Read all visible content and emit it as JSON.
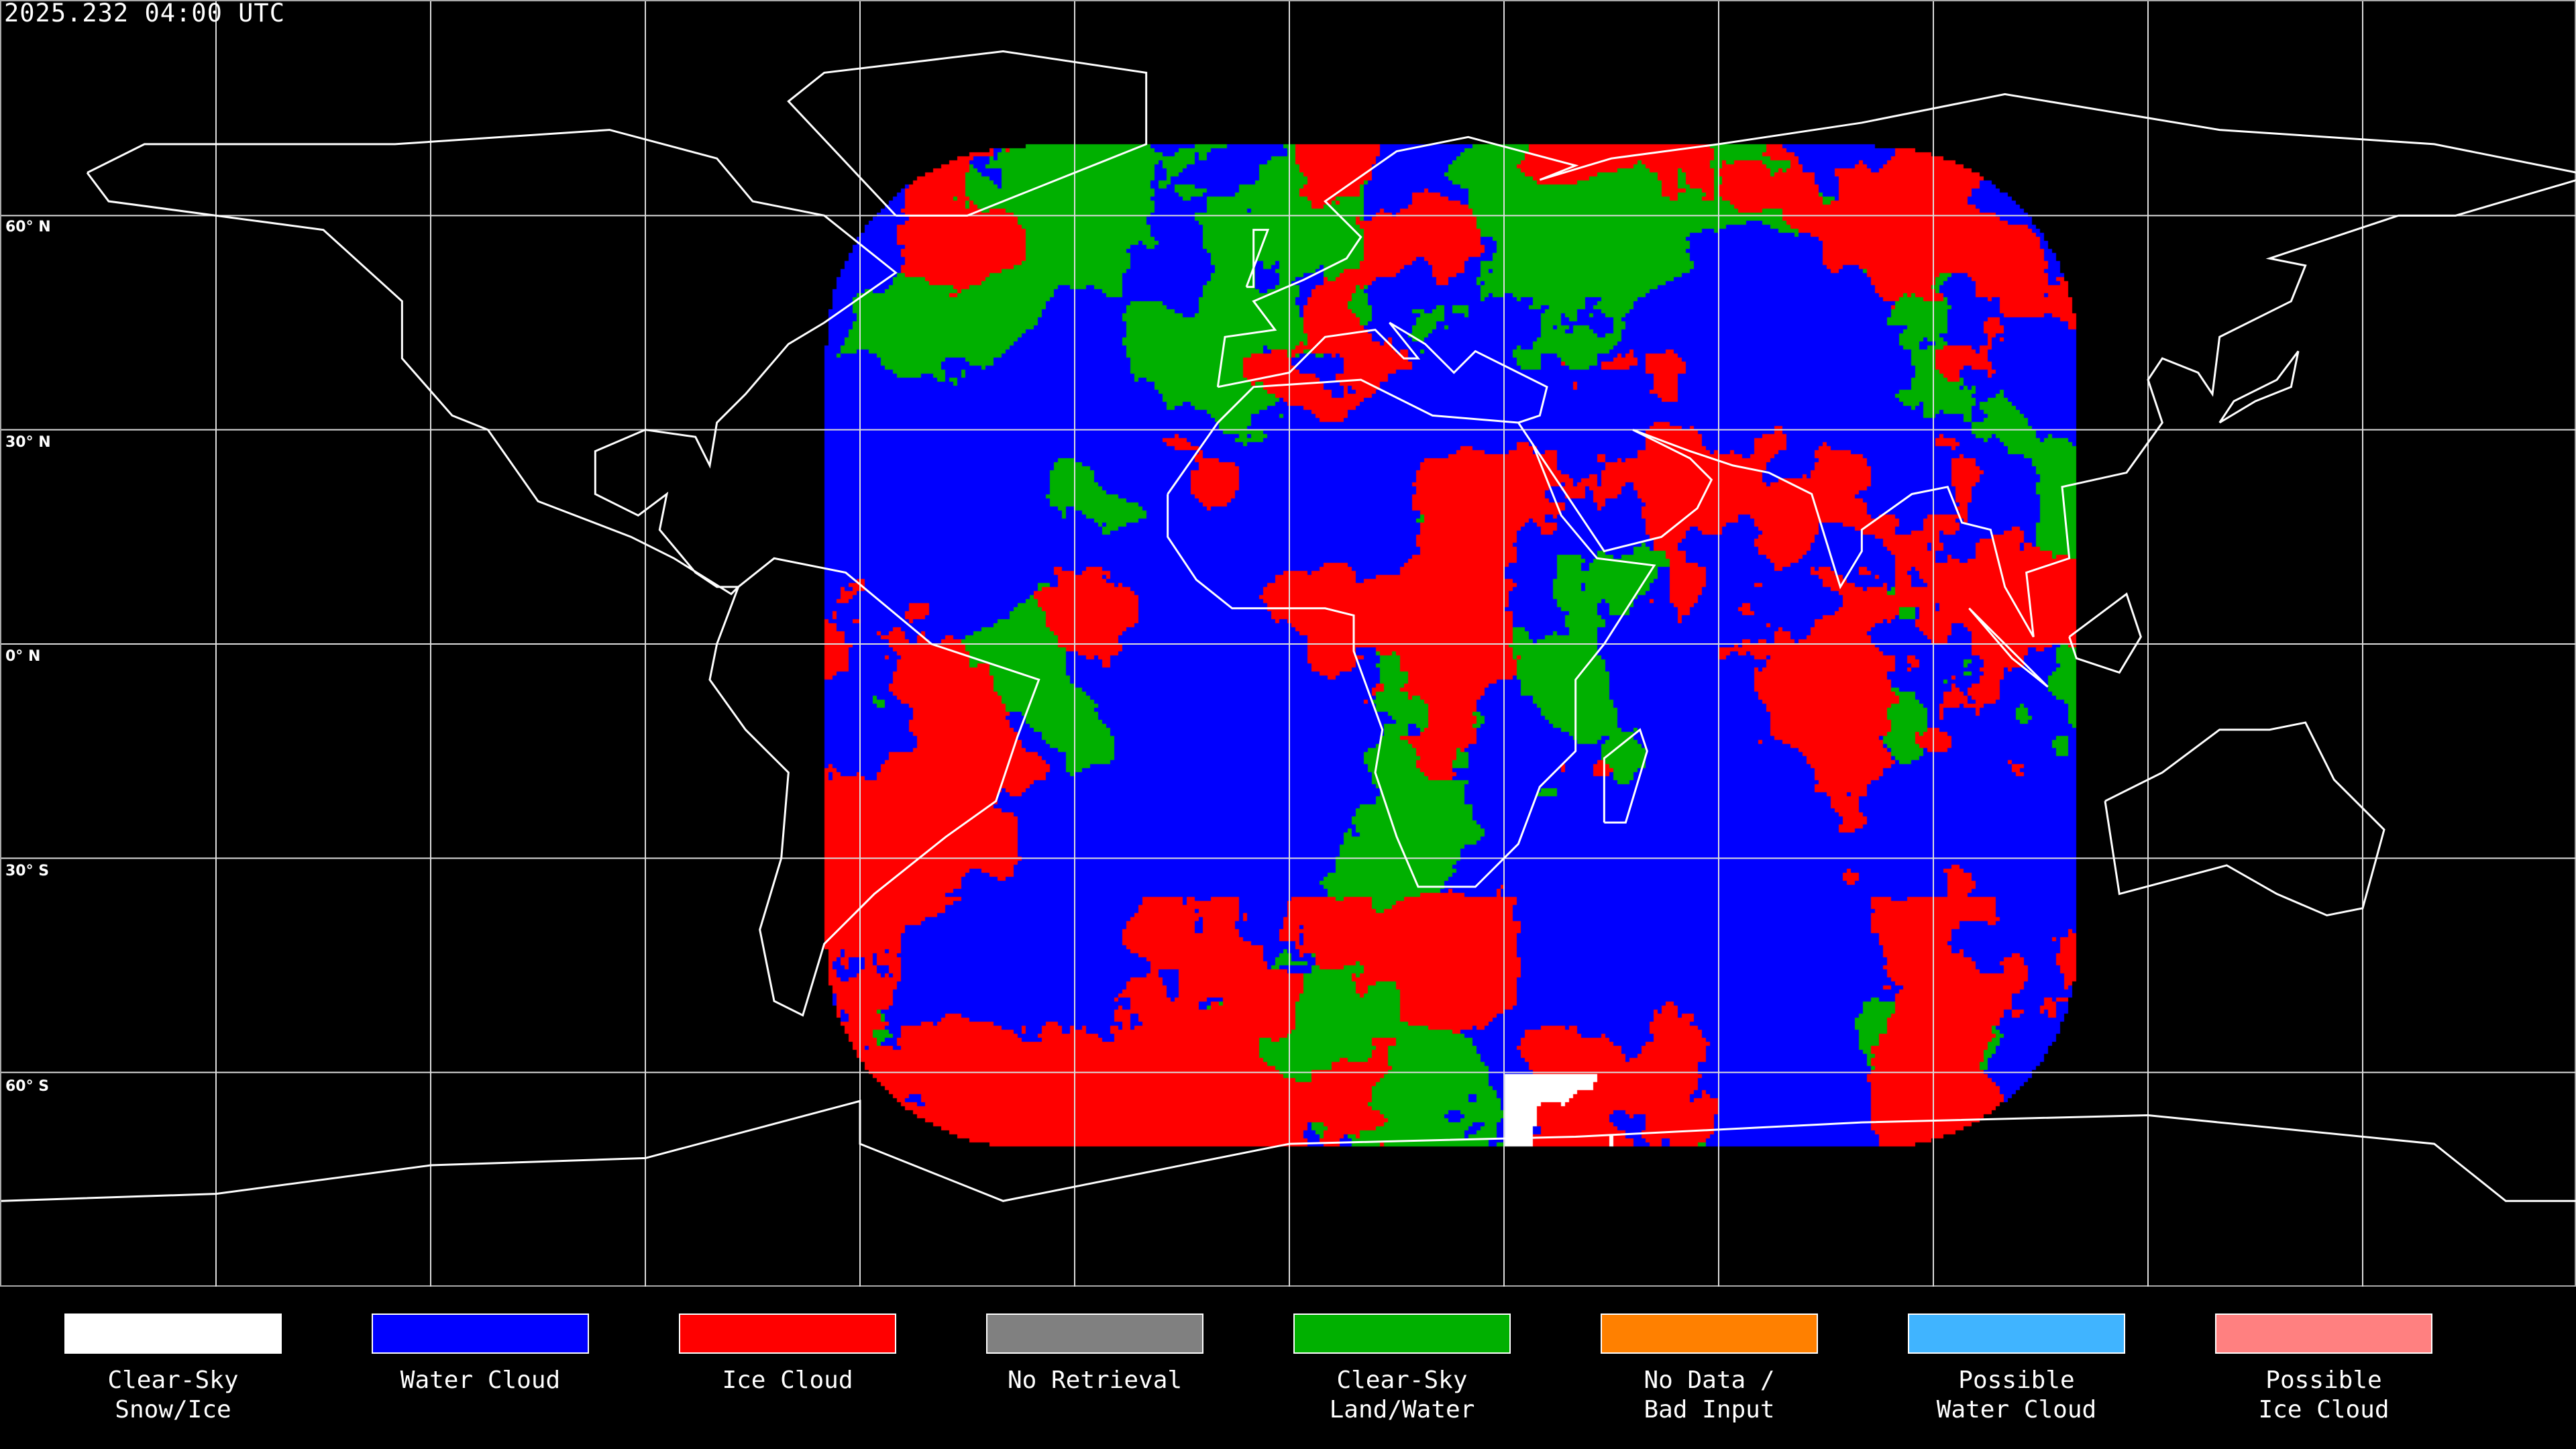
{
  "title": "2025.232 04:00 UTC",
  "lat_labels": [
    "60° N",
    "30° N",
    "0° N",
    "30° S",
    "60° S"
  ],
  "legend": [
    {
      "label": "Clear-Sky\nSnow/Ice",
      "color": "#FFFFFF"
    },
    {
      "label": "Water Cloud",
      "color": "#0000FF"
    },
    {
      "label": "Ice Cloud",
      "color": "#FF0000"
    },
    {
      "label": "No Retrieval",
      "color": "#808080"
    },
    {
      "label": "Clear-Sky\nLand/Water",
      "color": "#00B000"
    },
    {
      "label": "No Data /\nBad Input",
      "color": "#FF8000"
    },
    {
      "label": "Possible\nWater Cloud",
      "color": "#40B4FF"
    },
    {
      "label": "Possible\nIce Cloud",
      "color": "#FF8080"
    }
  ]
}
